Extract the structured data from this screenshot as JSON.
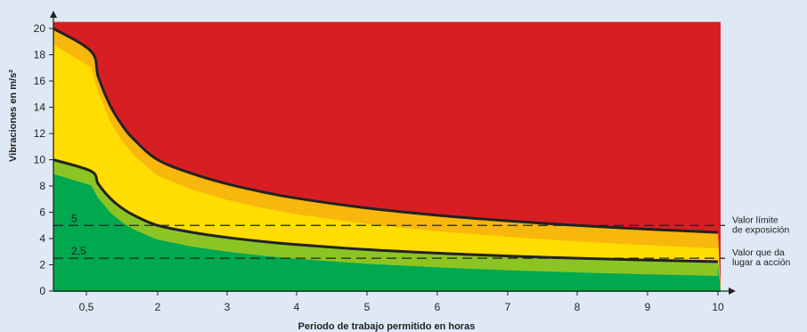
{
  "chart_data": {
    "type": "area",
    "title": "",
    "xlabel": "Periodo de trabajo permitido en horas",
    "ylabel": "Vibraciones en m/s²",
    "xlim": [
      0.5,
      10
    ],
    "ylim": [
      0,
      20
    ],
    "x_ticks": [
      {
        "value": 0.5,
        "label": "0,5"
      },
      {
        "value": 2,
        "label": "2"
      },
      {
        "value": 3,
        "label": "3"
      },
      {
        "value": 4,
        "label": "4"
      },
      {
        "value": 5,
        "label": "5"
      },
      {
        "value": 6,
        "label": "6"
      },
      {
        "value": 7,
        "label": "7"
      },
      {
        "value": 8,
        "label": "8"
      },
      {
        "value": 9,
        "label": "9"
      },
      {
        "value": 10,
        "label": "10"
      }
    ],
    "y_ticks": [
      {
        "value": 0,
        "label": "0"
      },
      {
        "value": 2,
        "label": "2"
      },
      {
        "value": 4,
        "label": "4"
      },
      {
        "value": 6,
        "label": "6"
      },
      {
        "value": 8,
        "label": "8"
      },
      {
        "value": 10,
        "label": "10"
      },
      {
        "value": 12,
        "label": "12"
      },
      {
        "value": 14,
        "label": "14"
      },
      {
        "value": 16,
        "label": "16"
      },
      {
        "value": 18,
        "label": "18"
      },
      {
        "value": 20,
        "label": "20"
      }
    ],
    "grid": false,
    "series": [
      {
        "values": [
          [
            0.5,
            20.0
          ],
          [
            0.6,
            18.26
          ],
          [
            0.75,
            16.33
          ],
          [
            1.0,
            14.14
          ],
          [
            1.25,
            12.65
          ],
          [
            1.5,
            11.55
          ],
          [
            2.0,
            10.0
          ],
          [
            2.5,
            8.94
          ],
          [
            3.0,
            8.16
          ],
          [
            3.5,
            7.56
          ],
          [
            4.0,
            7.07
          ],
          [
            5.0,
            6.32
          ],
          [
            6.0,
            5.77
          ],
          [
            7.0,
            5.35
          ],
          [
            8.0,
            5.0
          ],
          [
            9.0,
            4.71
          ],
          [
            10.0,
            4.47
          ]
        ]
      },
      {
        "values": [
          [
            0.5,
            10.0
          ],
          [
            0.6,
            9.13
          ],
          [
            0.75,
            8.16
          ],
          [
            1.0,
            7.07
          ],
          [
            1.25,
            6.32
          ],
          [
            1.5,
            5.77
          ],
          [
            2.0,
            5.0
          ],
          [
            2.5,
            4.47
          ],
          [
            3.0,
            4.08
          ],
          [
            3.5,
            3.78
          ],
          [
            4.0,
            3.54
          ],
          [
            5.0,
            3.16
          ],
          [
            6.0,
            2.89
          ],
          [
            7.0,
            2.67
          ],
          [
            8.0,
            2.5
          ],
          [
            9.0,
            2.36
          ],
          [
            10.0,
            2.24
          ]
        ]
      }
    ],
    "reference_lines": [
      {
        "value": 5,
        "label": "5",
        "annotation": [
          "Valor límite",
          "de exposición"
        ]
      },
      {
        "value": 2.5,
        "label": "2,5",
        "annotation": [
          "Valor que da",
          "lugar a acción"
        ]
      }
    ],
    "zone_colors": {
      "above_limit": "#d71f23",
      "between": "#ffdd00",
      "below_action": "#00a84f",
      "curve": "#222222",
      "background": "#dfe8f5"
    }
  }
}
